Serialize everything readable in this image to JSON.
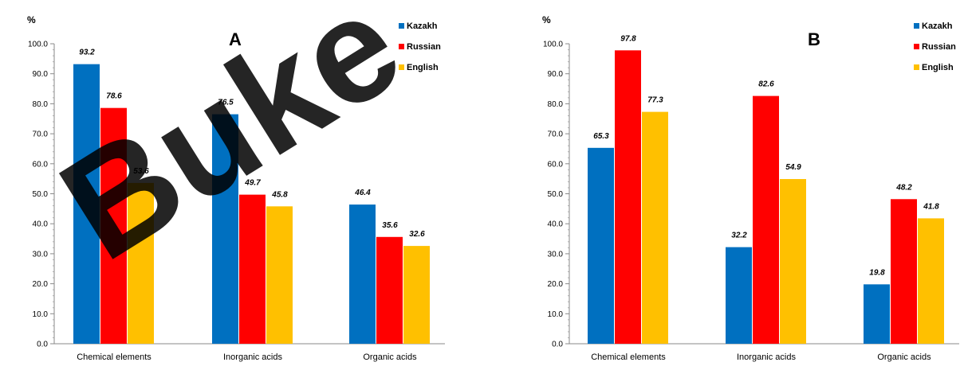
{
  "watermark": "Buke",
  "chart_data": [
    {
      "type": "bar",
      "panel": "A",
      "ylabel": "%",
      "ylim": [
        0,
        100
      ],
      "y_ticks": [
        "0.0",
        "10.0",
        "20.0",
        "30.0",
        "40.0",
        "50.0",
        "60.0",
        "70.0",
        "80.0",
        "90.0",
        "100.0"
      ],
      "categories": [
        "Chemical elements",
        "Inorganic acids",
        "Organic acids"
      ],
      "series": [
        {
          "name": "Kazakh",
          "color": "#0070C0",
          "values": [
            93.2,
            76.5,
            46.4
          ],
          "labels": [
            "93.2",
            "76.5",
            "46.4"
          ]
        },
        {
          "name": "Russian",
          "color": "#FF0000",
          "values": [
            78.6,
            49.7,
            35.6
          ],
          "labels": [
            "78.6",
            "49.7",
            "35.6"
          ]
        },
        {
          "name": "English",
          "color": "#FFC000",
          "values": [
            53.6,
            45.8,
            32.6
          ],
          "labels": [
            "53.6",
            "45.8",
            "32.6"
          ]
        }
      ],
      "legend": "top-right",
      "grid": false
    },
    {
      "type": "bar",
      "panel": "B",
      "ylabel": "%",
      "ylim": [
        0,
        100
      ],
      "y_ticks": [
        "0.0",
        "10.0",
        "20.0",
        "30.0",
        "40.0",
        "50.0",
        "60.0",
        "70.0",
        "80.0",
        "90.0",
        "100.0"
      ],
      "categories": [
        "Chemical elements",
        "Inorganic acids",
        "Organic acids"
      ],
      "series": [
        {
          "name": "Kazakh",
          "color": "#0070C0",
          "values": [
            65.3,
            32.2,
            19.8
          ],
          "labels": [
            "65.3",
            "32.2",
            "19.8"
          ]
        },
        {
          "name": "Russian",
          "color": "#FF0000",
          "values": [
            97.8,
            82.6,
            48.2
          ],
          "labels": [
            "97.8",
            "82.6",
            "48.2"
          ]
        },
        {
          "name": "English",
          "color": "#FFC000",
          "values": [
            77.3,
            54.9,
            41.8
          ],
          "labels": [
            "77.3",
            "54.9",
            "41.8"
          ]
        }
      ],
      "legend": "top-right",
      "grid": false
    }
  ]
}
